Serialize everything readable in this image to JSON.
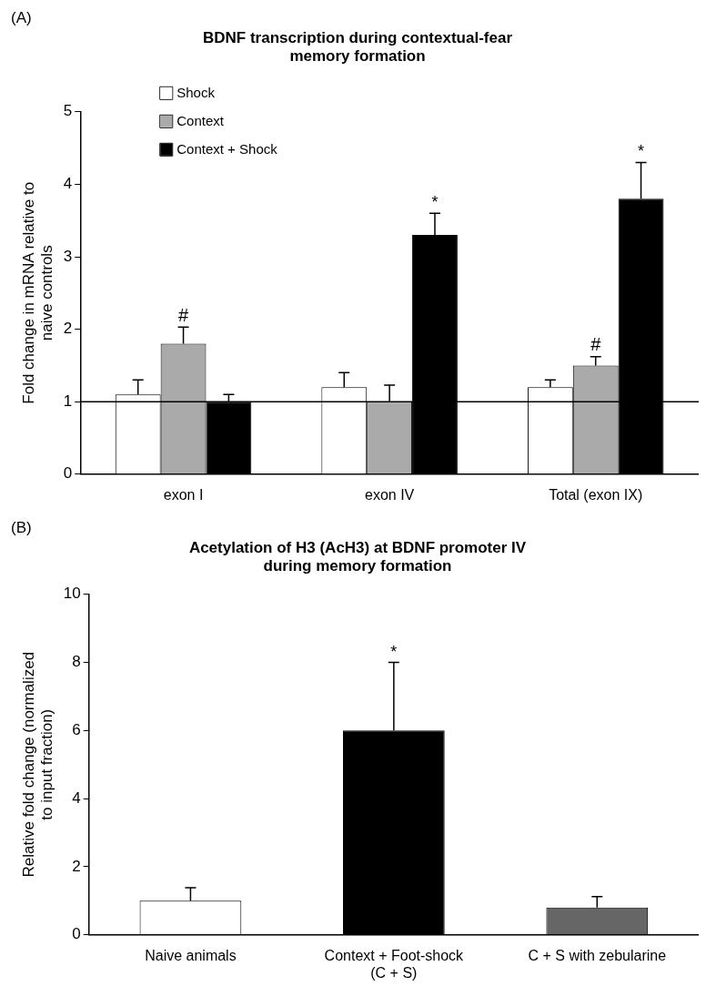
{
  "chart_data": [
    {
      "type": "bar",
      "title": "BDNF transcription during contextual-fear memory formation",
      "ylabel": "Fold change in mRNA relative to naive controls",
      "categories": [
        "exon I",
        "exon IV",
        "Total (exon IX)"
      ],
      "series": [
        {
          "name": "Shock",
          "color": "#ffffff",
          "values": [
            1.1,
            1.2,
            1.2
          ],
          "errors": [
            [
              1.1,
              1.3
            ],
            [
              1.2,
              1.4
            ],
            [
              1.2,
              1.3
            ]
          ]
        },
        {
          "name": "Context",
          "color": "#aaaaaa",
          "values": [
            1.8,
            1.0,
            1.5
          ],
          "errors": [
            [
              1.8,
              2.03
            ],
            [
              1.0,
              1.23
            ],
            [
              1.5,
              1.62
            ]
          ]
        },
        {
          "name": "Context + Shock",
          "color": "#000000",
          "values": [
            1.0,
            3.3,
            3.8
          ],
          "errors": [
            [
              1.0,
              1.1
            ],
            [
              3.3,
              3.6
            ],
            [
              3.8,
              4.3
            ]
          ]
        }
      ],
      "ylim": [
        0,
        5
      ],
      "yticks": [
        0,
        1,
        2,
        3,
        4,
        5
      ],
      "grid": false,
      "legend": "top left",
      "ref_lines": [
        {
          "axis": "y",
          "value": 1
        }
      ],
      "annotations": [
        "(A)",
        {
          "text": "#",
          "x": "exon I",
          "y": 2.03
        },
        "*",
        {
          "text": "#",
          "x": "Total (exon IX)",
          "y": 1.62
        },
        "*"
      ]
    },
    {
      "type": "bar",
      "title": "Acetylation of H3 (AcH3) at BDNF promoter IV during memory formation",
      "ylabel": "Relative fold change (normalized to input fraction)",
      "categories": [
        "Naive animals",
        "Context + Foot-shock (C + S)",
        "C + S with zebularine"
      ],
      "values": [
        1.0,
        6.0,
        0.8
      ],
      "colors": [
        "#ffffff",
        "#000000",
        "#666666"
      ],
      "errors": [
        [
          1.0,
          1.38
        ],
        [
          6.0,
          8.0
        ],
        [
          0.8,
          1.12
        ]
      ],
      "ylim": [
        0,
        10
      ],
      "yticks": [
        0,
        2,
        4,
        6,
        8,
        10
      ],
      "grid": false,
      "annotations": [
        "(B)",
        {
          "text": "*",
          "x": "Context + Foot-shock (C + S)",
          "y": 8.0
        }
      ]
    }
  ]
}
